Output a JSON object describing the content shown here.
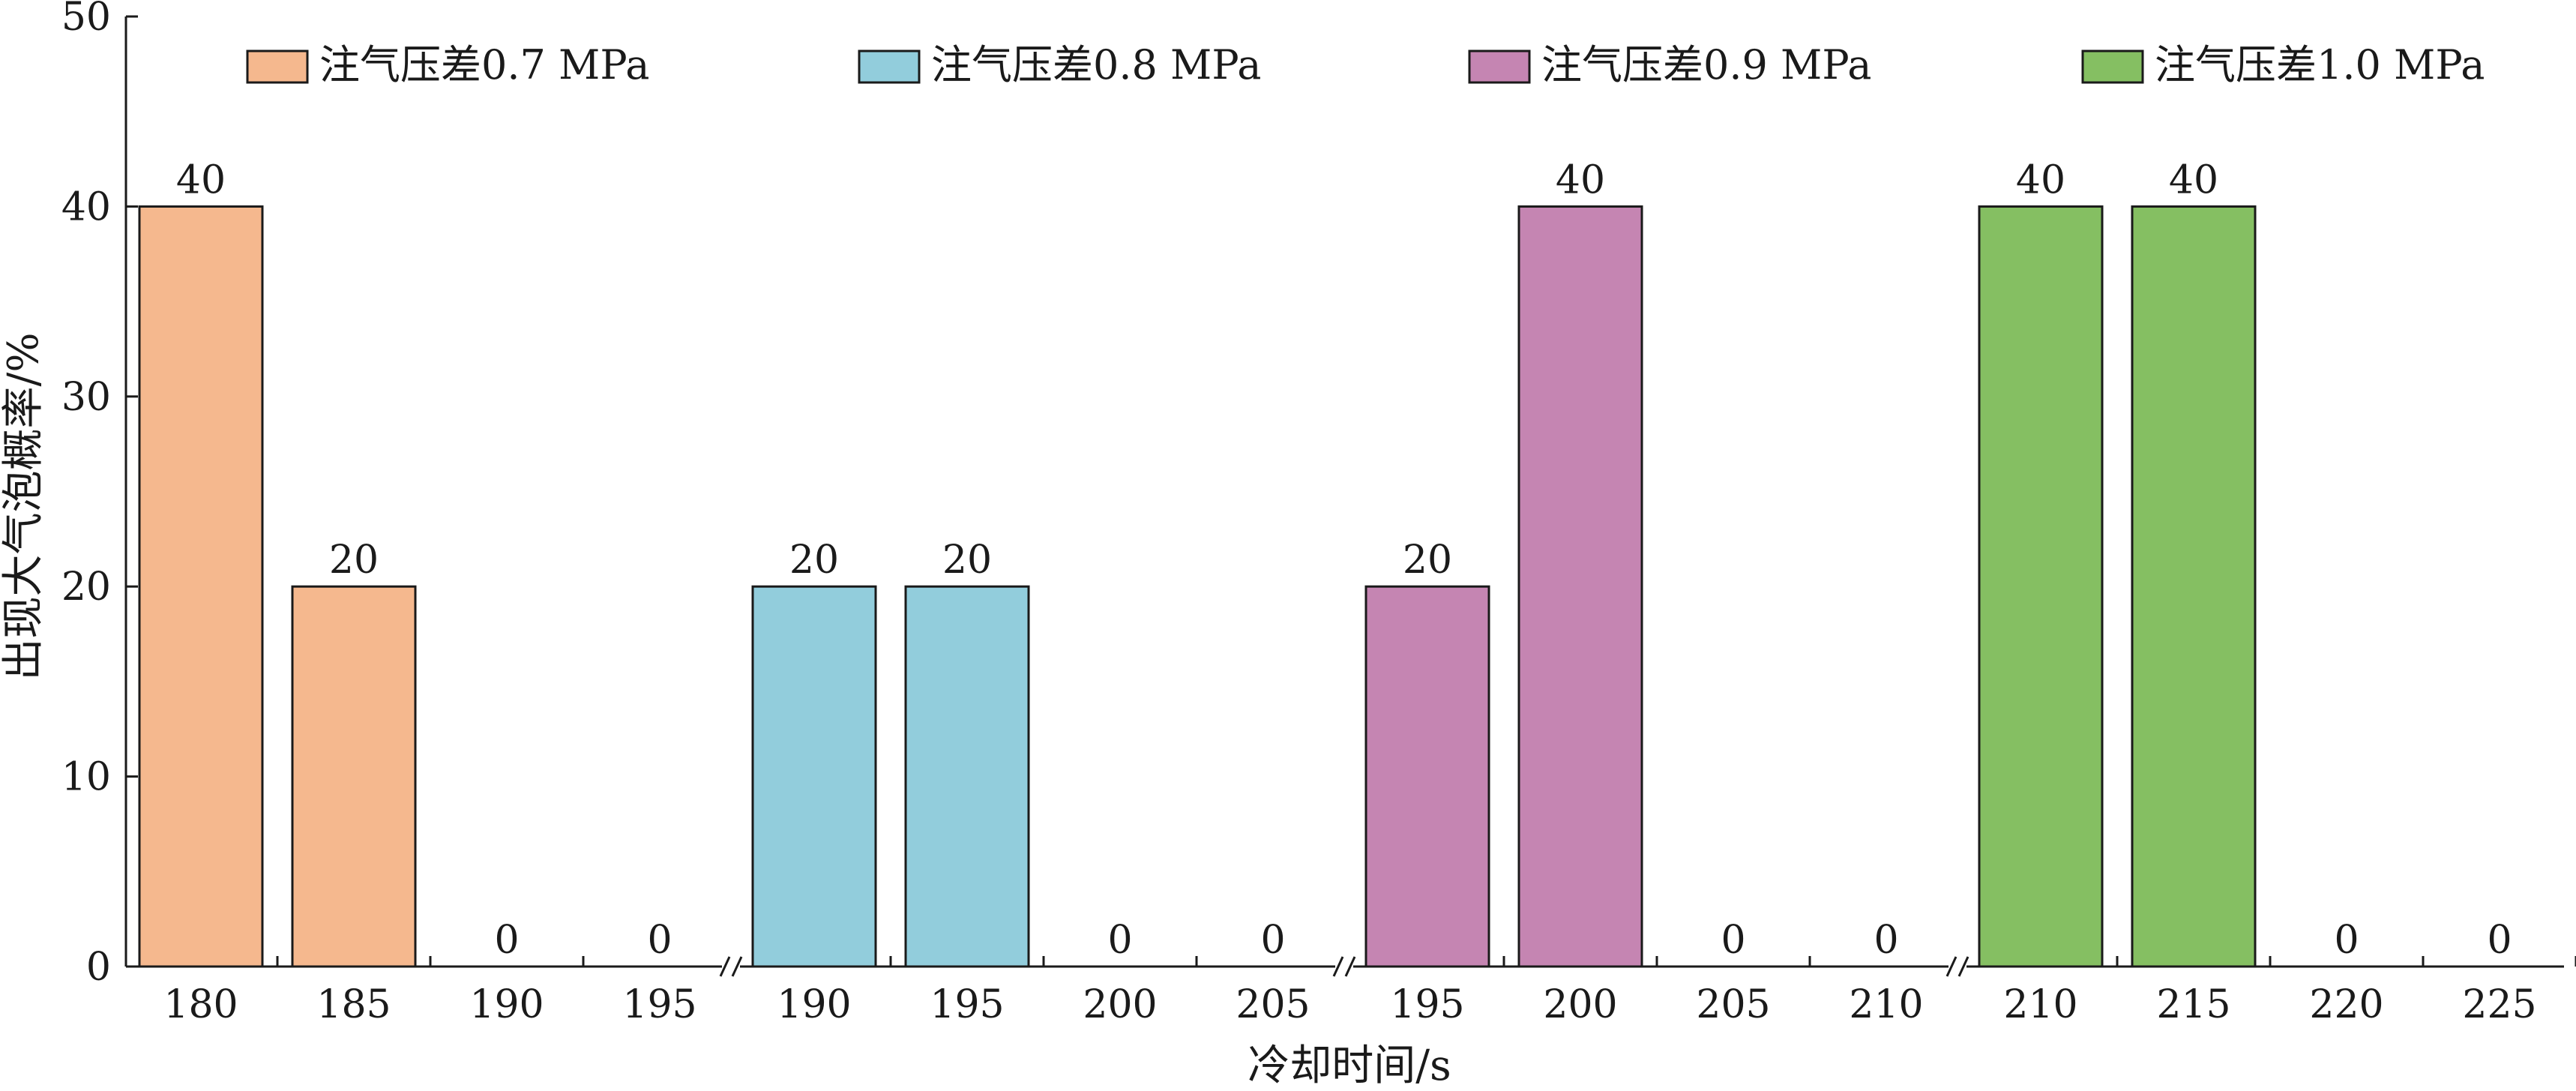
{
  "chart_data": {
    "type": "bar",
    "ylabel": "出现大气泡概率/%",
    "xlabel": "冷却时间/s",
    "ylim": [
      0,
      50
    ],
    "yticks": [
      0,
      10,
      20,
      30,
      40,
      50
    ],
    "grid": false,
    "legend_position": "top",
    "axis_break": true,
    "series": [
      {
        "name": "注气压差0.7 MPa",
        "color": "#F5B88E",
        "categories": [
          "180",
          "185",
          "190",
          "195"
        ],
        "values": [
          40,
          20,
          0,
          0
        ]
      },
      {
        "name": "注气压差0.8 MPa",
        "color": "#92CDDC",
        "categories": [
          "190",
          "195",
          "200",
          "205"
        ],
        "values": [
          20,
          20,
          0,
          0
        ]
      },
      {
        "name": "注气压差0.9 MPa",
        "color": "#C585B2",
        "categories": [
          "195",
          "200",
          "205",
          "210"
        ],
        "values": [
          20,
          40,
          0,
          0
        ]
      },
      {
        "name": "注气压差1.0 MPa",
        "color": "#85BF62",
        "categories": [
          "210",
          "215",
          "220",
          "225"
        ],
        "values": [
          40,
          40,
          0,
          0
        ]
      }
    ]
  }
}
